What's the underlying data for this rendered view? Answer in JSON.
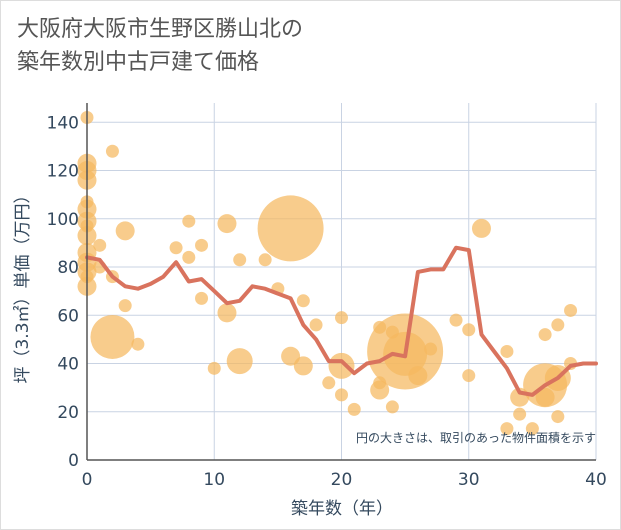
{
  "title_line1": "大阪府大阪市生野区勝山北の",
  "title_line2": "築年数別中古戸建て価格",
  "chart_data": {
    "type": "scatter",
    "xlabel": "築年数（年）",
    "ylabel": "坪（3.3㎡）単価（万円）",
    "xlim": [
      0,
      40
    ],
    "ylim": [
      0,
      148
    ],
    "xticks": [
      0,
      10,
      20,
      30,
      40
    ],
    "yticks": [
      0,
      20,
      40,
      60,
      80,
      100,
      120,
      140
    ],
    "grid": true,
    "note": "円の大きさは、取引のあった物件面積を示す",
    "colors": {
      "bubble": "#f5b95f",
      "line": "#d9735e",
      "grid": "#c9d3e3",
      "text": "#34495e"
    },
    "bubbles": [
      {
        "x": 0,
        "y": 142,
        "s": 1
      },
      {
        "x": 0,
        "y": 123,
        "s": 2
      },
      {
        "x": 0,
        "y": 120,
        "s": 2
      },
      {
        "x": 0,
        "y": 116,
        "s": 2
      },
      {
        "x": 0,
        "y": 107,
        "s": 1
      },
      {
        "x": 0,
        "y": 104,
        "s": 2
      },
      {
        "x": 0,
        "y": 99,
        "s": 2
      },
      {
        "x": 0,
        "y": 97,
        "s": 1
      },
      {
        "x": 0,
        "y": 93,
        "s": 2
      },
      {
        "x": 0,
        "y": 86,
        "s": 2
      },
      {
        "x": 0,
        "y": 82,
        "s": 2
      },
      {
        "x": 0,
        "y": 78,
        "s": 2
      },
      {
        "x": 0,
        "y": 76,
        "s": 1
      },
      {
        "x": 0,
        "y": 72,
        "s": 2
      },
      {
        "x": 1,
        "y": 89,
        "s": 1
      },
      {
        "x": 1,
        "y": 80,
        "s": 1
      },
      {
        "x": 2,
        "y": 128,
        "s": 1
      },
      {
        "x": 2,
        "y": 76,
        "s": 1
      },
      {
        "x": 2,
        "y": 51,
        "s": 4
      },
      {
        "x": 3,
        "y": 95,
        "s": 2
      },
      {
        "x": 3,
        "y": 64,
        "s": 1
      },
      {
        "x": 4,
        "y": 48,
        "s": 1
      },
      {
        "x": 7,
        "y": 88,
        "s": 1
      },
      {
        "x": 8,
        "y": 99,
        "s": 1
      },
      {
        "x": 8,
        "y": 84,
        "s": 1
      },
      {
        "x": 9,
        "y": 89,
        "s": 1
      },
      {
        "x": 9,
        "y": 67,
        "s": 1
      },
      {
        "x": 10,
        "y": 38,
        "s": 1
      },
      {
        "x": 11,
        "y": 98,
        "s": 2
      },
      {
        "x": 11,
        "y": 61,
        "s": 2
      },
      {
        "x": 12,
        "y": 83,
        "s": 1
      },
      {
        "x": 12,
        "y": 41,
        "s": 3
      },
      {
        "x": 14,
        "y": 83,
        "s": 1
      },
      {
        "x": 15,
        "y": 71,
        "s": 1
      },
      {
        "x": 16,
        "y": 96,
        "s": 5
      },
      {
        "x": 16,
        "y": 43,
        "s": 2
      },
      {
        "x": 17,
        "y": 66,
        "s": 1
      },
      {
        "x": 17,
        "y": 39,
        "s": 2
      },
      {
        "x": 18,
        "y": 56,
        "s": 1
      },
      {
        "x": 19,
        "y": 32,
        "s": 1
      },
      {
        "x": 20,
        "y": 59,
        "s": 1
      },
      {
        "x": 20,
        "y": 39,
        "s": 3
      },
      {
        "x": 20,
        "y": 27,
        "s": 1
      },
      {
        "x": 21,
        "y": 21,
        "s": 1
      },
      {
        "x": 23,
        "y": 55,
        "s": 1
      },
      {
        "x": 23,
        "y": 32,
        "s": 1
      },
      {
        "x": 23,
        "y": 29,
        "s": 2
      },
      {
        "x": 24,
        "y": 53,
        "s": 1
      },
      {
        "x": 24,
        "y": 22,
        "s": 1
      },
      {
        "x": 25,
        "y": 45,
        "s": 6
      },
      {
        "x": 25,
        "y": 44,
        "s": 4
      },
      {
        "x": 26,
        "y": 35,
        "s": 2
      },
      {
        "x": 27,
        "y": 46,
        "s": 1
      },
      {
        "x": 29,
        "y": 58,
        "s": 1
      },
      {
        "x": 30,
        "y": 54,
        "s": 1
      },
      {
        "x": 30,
        "y": 35,
        "s": 1
      },
      {
        "x": 31,
        "y": 96,
        "s": 2
      },
      {
        "x": 33,
        "y": 45,
        "s": 1
      },
      {
        "x": 33,
        "y": 13,
        "s": 1
      },
      {
        "x": 34,
        "y": 26,
        "s": 2
      },
      {
        "x": 34,
        "y": 19,
        "s": 1
      },
      {
        "x": 35,
        "y": 13,
        "s": 1
      },
      {
        "x": 36,
        "y": 52,
        "s": 1
      },
      {
        "x": 36,
        "y": 31,
        "s": 4
      },
      {
        "x": 36,
        "y": 26,
        "s": 2
      },
      {
        "x": 37,
        "y": 56,
        "s": 1
      },
      {
        "x": 37,
        "y": 34,
        "s": 3
      },
      {
        "x": 37,
        "y": 18,
        "s": 1
      },
      {
        "x": 38,
        "y": 62,
        "s": 1
      },
      {
        "x": 38,
        "y": 40,
        "s": 1
      }
    ],
    "trend": {
      "x": [
        0,
        1,
        2,
        3,
        4,
        5,
        6,
        7,
        8,
        9,
        10,
        11,
        12,
        13,
        14,
        15,
        16,
        17,
        18,
        19,
        20,
        21,
        22,
        23,
        24,
        25,
        26,
        27,
        28,
        29,
        30,
        31,
        32,
        33,
        34,
        35,
        36,
        37,
        38,
        39,
        40
      ],
      "y": [
        84,
        83,
        76,
        72,
        71,
        73,
        76,
        82,
        74,
        75,
        70,
        65,
        66,
        72,
        71,
        69,
        67,
        56,
        50,
        41,
        41,
        36,
        40,
        41,
        44,
        43,
        78,
        79,
        79,
        88,
        87,
        52,
        45,
        38,
        28,
        27,
        31,
        34,
        39,
        40,
        40
      ]
    }
  }
}
